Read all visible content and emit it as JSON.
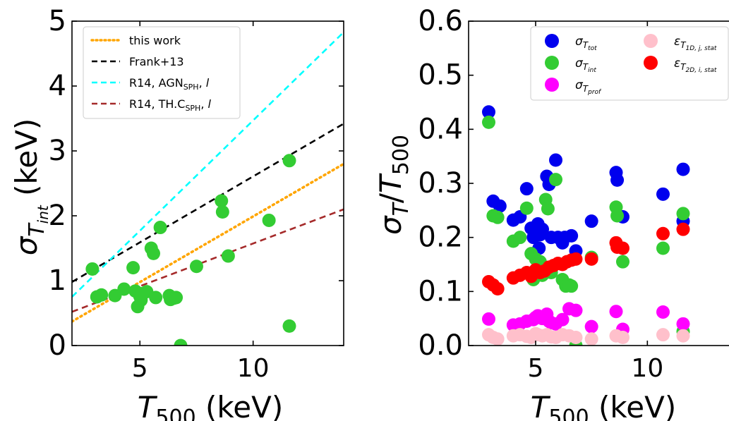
{
  "chart_data": [
    {
      "type": "scatter",
      "xlabel": "T500 (keV)",
      "ylabel": "σT_int (keV)",
      "xlim": [
        2.0,
        14.0
      ],
      "ylim": [
        0,
        5
      ],
      "xticks": [
        5,
        10
      ],
      "yticks": [
        0,
        1,
        2,
        3,
        4,
        5
      ],
      "legend_position": "top-left",
      "lines": [
        {
          "name": "this work",
          "color": "#ffa500",
          "style": "dotted",
          "x": [
            2.0,
            14.0
          ],
          "y": [
            0.37,
            2.8
          ]
        },
        {
          "name": "Frank+13",
          "color": "#000000",
          "style": "dashed",
          "x": [
            2.0,
            14.0
          ],
          "y": [
            0.98,
            3.42
          ]
        },
        {
          "name": "R14, AGN_SPH, l",
          "color": "#00ffff",
          "style": "dashed",
          "x": [
            2.0,
            14.0
          ],
          "y": [
            0.75,
            4.83
          ]
        },
        {
          "name": "R14, TH.C_SPH, l",
          "color": "#a52a2a",
          "style": "dashed",
          "x": [
            2.0,
            14.0
          ],
          "y": [
            0.52,
            2.1
          ]
        }
      ],
      "series": [
        {
          "color": "#33cc33",
          "x": [
            2.9,
            3.1,
            3.3,
            3.9,
            4.3,
            4.7,
            4.8,
            4.9,
            5.0,
            5.05,
            5.1,
            5.3,
            5.5,
            5.6,
            5.7,
            5.9,
            6.3,
            6.35,
            6.5,
            6.6,
            6.8,
            7.5,
            8.6,
            8.65,
            8.9,
            10.7,
            11.6,
            11.6
          ],
          "y": [
            1.18,
            0.75,
            0.78,
            0.77,
            0.87,
            1.2,
            0.84,
            0.6,
            0.76,
            0.7,
            0.8,
            0.83,
            1.5,
            1.42,
            0.74,
            1.82,
            0.77,
            0.71,
            0.73,
            0.74,
            0.0,
            1.22,
            2.23,
            2.06,
            1.38,
            1.93,
            2.85,
            0.3
          ]
        }
      ]
    },
    {
      "type": "scatter",
      "xlabel": "T500 (keV)",
      "ylabel": "σT/T500",
      "xlim": [
        2.0,
        14.0
      ],
      "ylim": [
        0,
        0.6
      ],
      "xticks": [
        5,
        10
      ],
      "yticks": [
        0.0,
        0.1,
        0.2,
        0.3,
        0.4,
        0.5,
        0.6
      ],
      "legend_position": "top-right",
      "series": [
        {
          "name": "σT_tot",
          "color": "#0000ee",
          "x": [
            2.9,
            3.1,
            3.4,
            4.0,
            4.3,
            4.6,
            4.8,
            4.9,
            5.0,
            5.1,
            5.15,
            5.2,
            5.3,
            5.5,
            5.6,
            5.7,
            5.9,
            6.0,
            6.2,
            6.3,
            6.6,
            6.8,
            7.5,
            8.6,
            8.65,
            8.9,
            10.7,
            11.6,
            11.6
          ],
          "y": [
            0.432,
            0.267,
            0.258,
            0.232,
            0.238,
            0.29,
            0.217,
            0.2,
            0.21,
            0.225,
            0.18,
            0.205,
            0.215,
            0.313,
            0.298,
            0.2,
            0.343,
            0.2,
            0.19,
            0.2,
            0.203,
            0.175,
            0.23,
            0.32,
            0.306,
            0.238,
            0.28,
            0.326,
            0.23
          ]
        },
        {
          "name": "σT_int",
          "color": "#33cc33",
          "x": [
            2.9,
            3.1,
            3.3,
            4.0,
            4.3,
            4.6,
            4.8,
            4.9,
            5.0,
            5.05,
            5.2,
            5.3,
            5.45,
            5.55,
            5.7,
            5.9,
            6.2,
            6.35,
            6.5,
            6.6,
            6.8,
            7.5,
            8.6,
            8.65,
            8.9,
            10.7,
            11.6,
            11.6
          ],
          "y": [
            0.413,
            0.24,
            0.237,
            0.193,
            0.2,
            0.254,
            0.17,
            0.122,
            0.16,
            0.137,
            0.155,
            0.13,
            0.27,
            0.253,
            0.135,
            0.307,
            0.122,
            0.11,
            0.112,
            0.11,
            0.0,
            0.163,
            0.256,
            0.24,
            0.155,
            0.18,
            0.244,
            0.026
          ]
        },
        {
          "name": "σT_prof",
          "color": "#ff00ff",
          "x": [
            2.9,
            4.0,
            4.3,
            4.6,
            4.9,
            5.0,
            5.1,
            5.3,
            5.5,
            5.6,
            5.7,
            5.9,
            6.2,
            6.5,
            6.8,
            7.5,
            8.6,
            8.9,
            10.7,
            11.6
          ],
          "y": [
            0.049,
            0.038,
            0.04,
            0.045,
            0.048,
            0.052,
            0.055,
            0.05,
            0.058,
            0.045,
            0.042,
            0.04,
            0.048,
            0.068,
            0.065,
            0.035,
            0.063,
            0.03,
            0.062,
            0.04
          ]
        },
        {
          "name": "εT_1D,j,stat",
          "color": "#ffc0cb",
          "x": [
            2.9,
            3.1,
            3.3,
            4.0,
            4.3,
            4.6,
            4.8,
            5.0,
            5.1,
            5.3,
            5.5,
            5.7,
            5.9,
            6.2,
            6.5,
            6.8,
            7.5,
            8.6,
            8.9,
            10.7,
            11.6
          ],
          "y": [
            0.02,
            0.015,
            0.012,
            0.018,
            0.02,
            0.017,
            0.015,
            0.022,
            0.02,
            0.018,
            0.02,
            0.016,
            0.015,
            0.02,
            0.018,
            0.015,
            0.012,
            0.018,
            0.015,
            0.02,
            0.018
          ]
        },
        {
          "name": "εT_2D,i,stat",
          "color": "#ff0000",
          "x": [
            2.9,
            3.1,
            3.3,
            4.0,
            4.3,
            4.6,
            4.8,
            5.0,
            5.2,
            5.4,
            5.6,
            5.8,
            6.0,
            6.2,
            6.4,
            6.6,
            6.8,
            7.5,
            8.6,
            8.65,
            8.9,
            10.7,
            11.6
          ],
          "y": [
            0.118,
            0.112,
            0.105,
            0.125,
            0.13,
            0.135,
            0.128,
            0.14,
            0.135,
            0.138,
            0.145,
            0.148,
            0.152,
            0.15,
            0.155,
            0.158,
            0.16,
            0.16,
            0.19,
            0.182,
            0.18,
            0.207,
            0.215
          ]
        }
      ]
    }
  ]
}
